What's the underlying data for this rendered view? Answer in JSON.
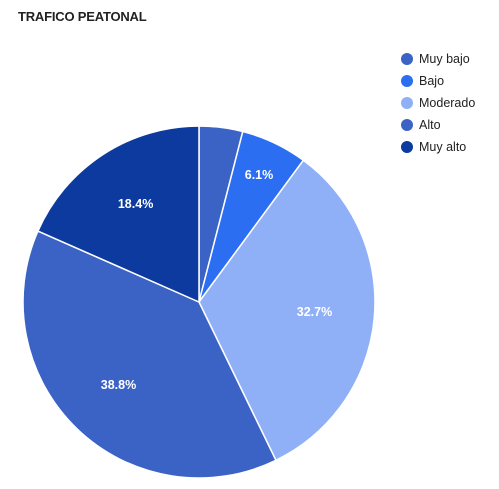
{
  "chart_data": {
    "type": "pie",
    "title": "TRAFICO PEATONAL",
    "slices": [
      {
        "name": "Muy bajo",
        "value": 4.0,
        "label": "",
        "color": "#3b63c6"
      },
      {
        "name": "Bajo",
        "value": 6.1,
        "label": "6.1%",
        "color": "#2c6ef2"
      },
      {
        "name": "Moderado",
        "value": 32.7,
        "label": "32.7%",
        "color": "#8fb0f7"
      },
      {
        "name": "Alto",
        "value": 38.8,
        "label": "38.8%",
        "color": "#3b63c6"
      },
      {
        "name": "Muy alto",
        "value": 18.4,
        "label": "18.4%",
        "color": "#0d3a9e"
      }
    ],
    "legend_position": "right"
  }
}
